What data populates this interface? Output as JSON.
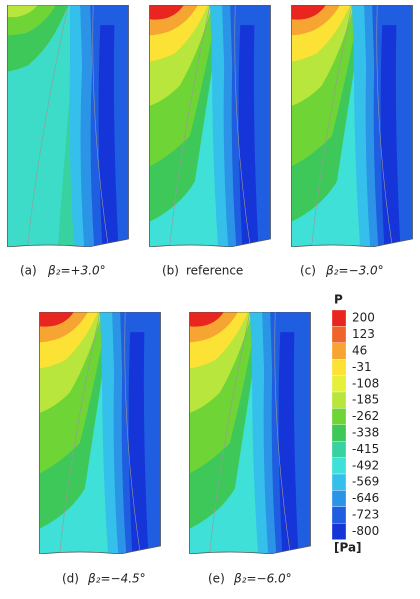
{
  "panels": [
    {
      "tag": "(a)",
      "label": "β₂=+3.0°"
    },
    {
      "tag": "(b)",
      "label": "reference"
    },
    {
      "tag": "(c)",
      "label": "β₂=−3.0°"
    },
    {
      "tag": "(d)",
      "label": "β₂=−4.5°"
    },
    {
      "tag": "(e)",
      "label": "β₂=−6.0°"
    }
  ],
  "legend": {
    "title": "P",
    "unit": "[Pa]",
    "levels": [
      200,
      123,
      46,
      -31,
      -108,
      -185,
      -262,
      -338,
      -415,
      -492,
      -569,
      -646,
      -723,
      -800
    ],
    "colors": [
      "#e8251e",
      "#f0642a",
      "#f7a532",
      "#fbe234",
      "#e6f03a",
      "#b8e63c",
      "#6fd436",
      "#3fc85a",
      "#38d2a0",
      "#3ee0d8",
      "#35c0ec",
      "#2c94e6",
      "#1f5ee0",
      "#1635d8"
    ]
  }
}
